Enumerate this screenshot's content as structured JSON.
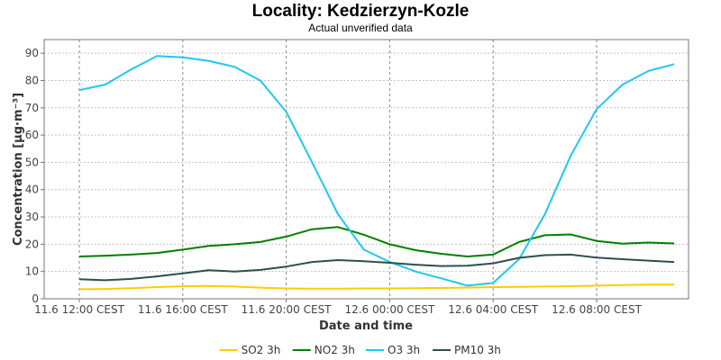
{
  "chart_data": {
    "type": "line",
    "title": "Locality: Kedzierzyn-Kozle",
    "subtitle": "Actual unverified data",
    "xlabel": "Date and time",
    "ylabel": "Concentration [µg·m⁻³]",
    "ylim": [
      0,
      95
    ],
    "yticks": [
      0,
      10,
      20,
      30,
      40,
      50,
      60,
      70,
      80,
      90
    ],
    "xticks": [
      {
        "index": 0,
        "label": "11.6 12:00 CEST"
      },
      {
        "index": 4,
        "label": "11.6 16:00 CEST"
      },
      {
        "index": 8,
        "label": "11.6 20:00 CEST"
      },
      {
        "index": 12,
        "label": "12.6 00:00 CEST"
      },
      {
        "index": 16,
        "label": "12.6 04:00 CEST"
      },
      {
        "index": 20,
        "label": "12.6 08:00 CEST"
      }
    ],
    "x": [
      "11.6 12:00",
      "11.6 13:00",
      "11.6 14:00",
      "11.6 15:00",
      "11.6 16:00",
      "11.6 17:00",
      "11.6 18:00",
      "11.6 19:00",
      "11.6 20:00",
      "11.6 21:00",
      "11.6 22:00",
      "11.6 23:00",
      "12.6 00:00",
      "12.6 01:00",
      "12.6 02:00",
      "12.6 03:00",
      "12.6 04:00",
      "12.6 05:00",
      "12.6 06:00",
      "12.6 07:00",
      "12.6 08:00",
      "12.6 09:00",
      "12.6 10:00",
      "12.6 11:00"
    ],
    "grid": true,
    "legend_position": "bottom",
    "series": [
      {
        "name": "SO2 3h",
        "color": "#ffcc00",
        "values": [
          3.5,
          3.6,
          3.9,
          4.3,
          4.6,
          4.7,
          4.5,
          4.1,
          3.8,
          3.7,
          3.7,
          3.8,
          3.8,
          3.9,
          4.0,
          4.1,
          4.3,
          4.4,
          4.5,
          4.6,
          4.8,
          5.0,
          5.2,
          5.2
        ]
      },
      {
        "name": "NO2 3h",
        "color": "#008000",
        "values": [
          15.5,
          15.8,
          16.2,
          16.8,
          18.0,
          19.4,
          20.0,
          20.8,
          22.8,
          25.5,
          26.3,
          23.5,
          20.0,
          17.8,
          16.5,
          15.5,
          16.2,
          20.8,
          23.3,
          23.6,
          21.2,
          20.2,
          20.6,
          20.3
        ]
      },
      {
        "name": "O3 3h",
        "color": "#1ec8f0",
        "values": [
          76.5,
          78.5,
          84.0,
          89.0,
          88.5,
          87.2,
          85.0,
          80.0,
          68.5,
          50.0,
          31.0,
          18.0,
          13.5,
          10.0,
          7.5,
          4.8,
          5.8,
          14.5,
          31.0,
          52.5,
          69.5,
          78.5,
          83.5,
          86.0
        ]
      },
      {
        "name": "PM10 3h",
        "color": "#2f4f4f",
        "values": [
          7.2,
          6.8,
          7.3,
          8.2,
          9.3,
          10.5,
          10.0,
          10.6,
          11.8,
          13.5,
          14.2,
          13.8,
          13.2,
          12.5,
          12.0,
          12.1,
          13.0,
          15.0,
          16.0,
          16.2,
          15.1,
          14.5,
          14.0,
          13.5
        ]
      }
    ]
  }
}
